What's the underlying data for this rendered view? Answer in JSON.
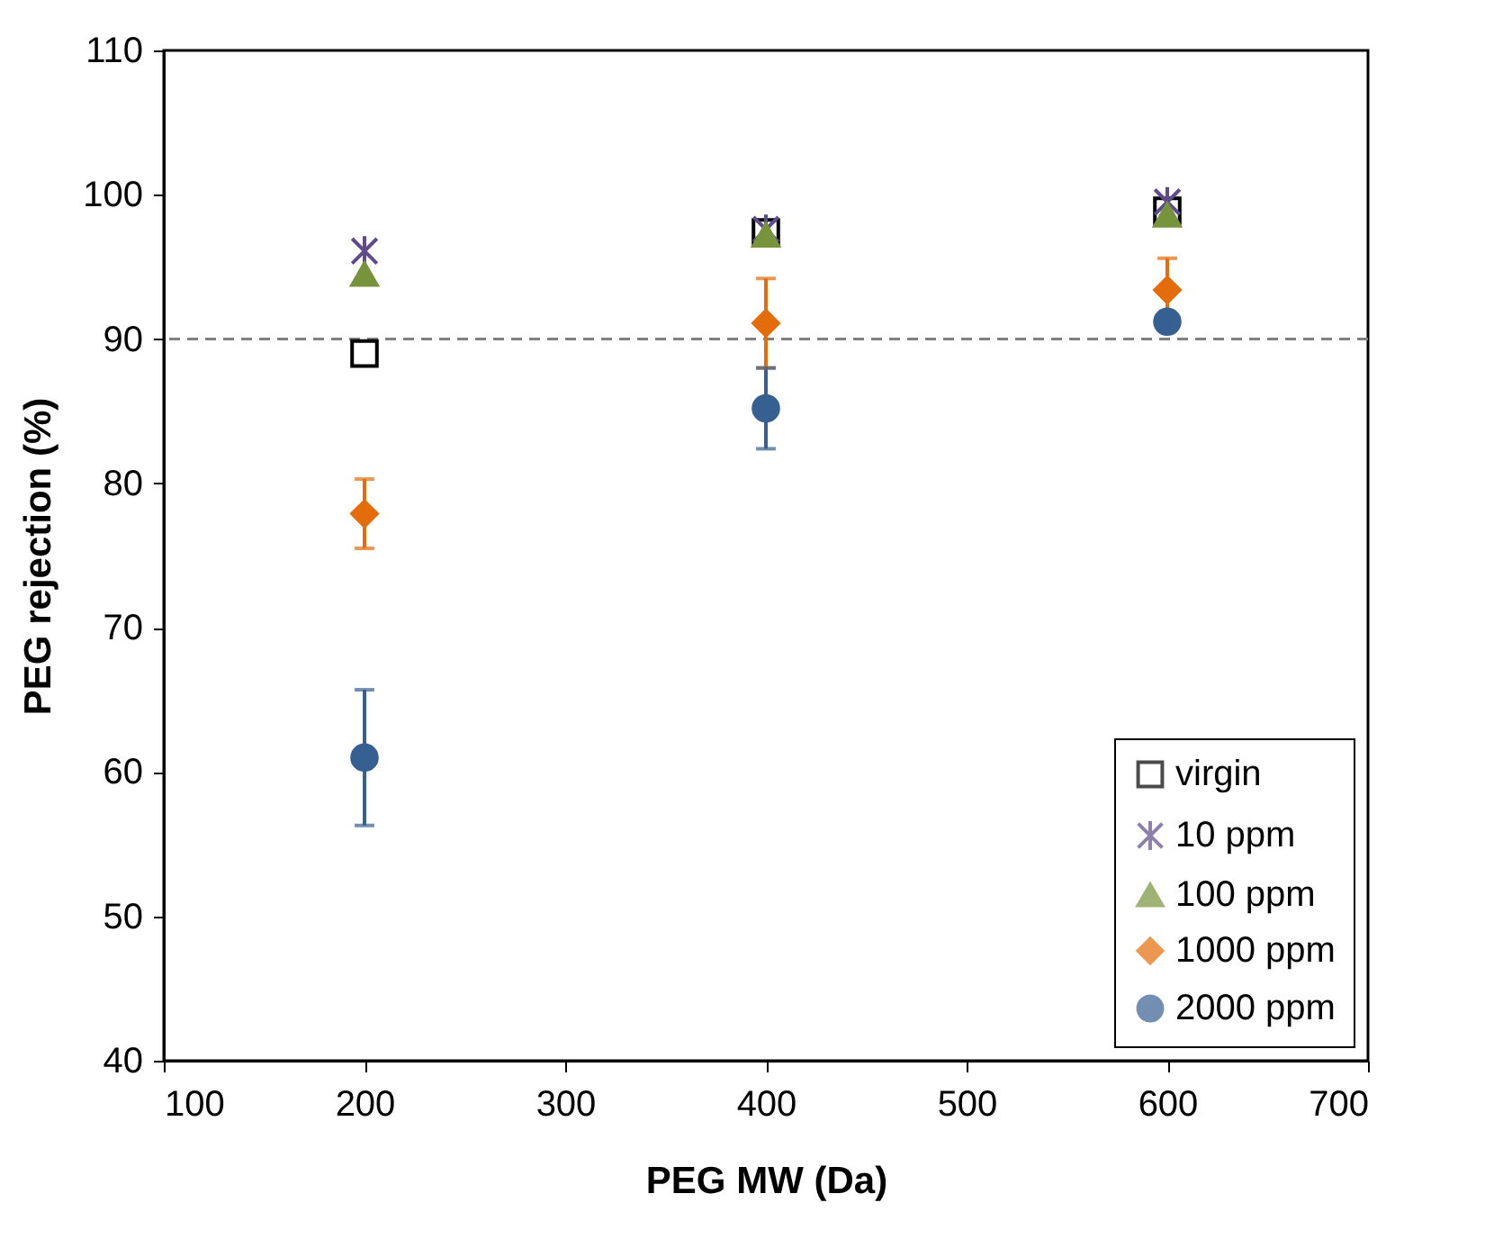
{
  "chart_data": {
    "type": "scatter",
    "xlabel": "PEG MW (Da)",
    "ylabel": "PEG rejection (%)",
    "x": [
      200,
      400,
      600
    ],
    "xlim": [
      100,
      700
    ],
    "xticks": [
      100,
      200,
      300,
      400,
      500,
      600,
      700
    ],
    "ylim": [
      40,
      110
    ],
    "yticks": [
      40,
      50,
      60,
      70,
      80,
      90,
      100,
      110
    ],
    "grid": false,
    "legend": "bottom right",
    "ref_lines": [
      {
        "axis": "y",
        "value": 90,
        "color": "#808080",
        "line_style": "dashed"
      }
    ],
    "series": [
      {
        "name": "virgin",
        "color": "#000000",
        "marker": "square",
        "values": [
          89.0,
          97.4,
          98.9
        ]
      },
      {
        "name": "10 ppm",
        "color": "#5f4b8b",
        "marker": "cross",
        "values": [
          96.1,
          97.6,
          99.5
        ]
      },
      {
        "name": "100 ppm",
        "color": "#77933c",
        "marker": "triangle",
        "values": [
          94.5,
          97.2,
          98.6
        ]
      },
      {
        "name": "1000 ppm",
        "color": "#e46c0a",
        "marker": "diamond",
        "values": [
          77.9,
          91.1,
          93.4
        ],
        "errors": [
          2.4,
          3.1,
          2.2
        ]
      },
      {
        "name": "2000 ppm",
        "color": "#376092",
        "marker": "circle",
        "values": [
          61.0,
          85.2,
          91.2
        ],
        "errors": [
          4.7,
          2.8,
          null
        ]
      }
    ]
  }
}
